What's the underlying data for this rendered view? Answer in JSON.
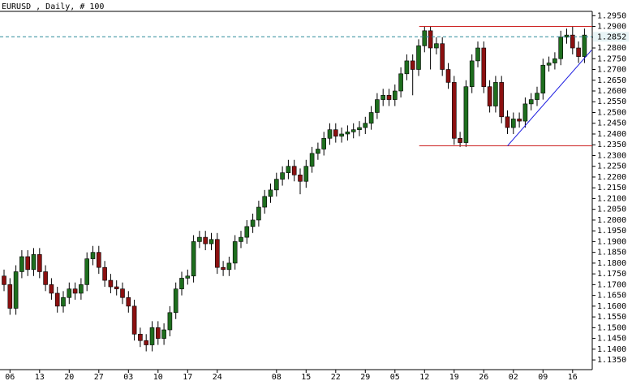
{
  "chart_data": {
    "type": "candlestick",
    "title": "EURUSD , Daily, # 100",
    "categories": [
      null,
      "06",
      null,
      null,
      null,
      null,
      "13",
      null,
      null,
      null,
      null,
      "20",
      null,
      null,
      null,
      null,
      "27",
      null,
      null,
      null,
      null,
      "03",
      null,
      null,
      null,
      null,
      "10",
      null,
      null,
      null,
      null,
      "17",
      null,
      null,
      null,
      null,
      "24",
      null,
      null,
      null,
      null,
      null,
      null,
      null,
      null,
      null,
      "08",
      null,
      null,
      null,
      null,
      "15",
      null,
      null,
      null,
      null,
      "22",
      null,
      null,
      null,
      null,
      "29",
      null,
      null,
      null,
      null,
      "05",
      null,
      null,
      null,
      null,
      "12",
      null,
      null,
      null,
      null,
      "19",
      null,
      null,
      null,
      null,
      "26",
      null,
      null,
      null,
      null,
      "02",
      null,
      null,
      null,
      null,
      "09",
      null,
      null,
      null,
      null,
      "16",
      null,
      null
    ],
    "open": [
      1.174,
      1.17,
      1.159,
      1.176,
      1.183,
      1.177,
      1.184,
      1.176,
      1.17,
      1.166,
      1.16,
      1.164,
      1.168,
      1.166,
      1.17,
      1.182,
      1.185,
      1.178,
      1.172,
      1.169,
      1.168,
      1.164,
      1.16,
      1.147,
      1.144,
      1.142,
      1.15,
      1.145,
      1.149,
      1.157,
      1.168,
      1.173,
      1.174,
      1.19,
      1.192,
      1.189,
      1.191,
      1.178,
      1.177,
      1.18,
      1.19,
      1.192,
      1.197,
      1.2,
      1.206,
      1.211,
      1.214,
      1.219,
      1.222,
      1.225,
      1.221,
      1.218,
      1.225,
      1.231,
      1.233,
      1.238,
      1.242,
      1.239,
      1.24,
      1.241,
      1.242,
      1.243,
      1.245,
      1.25,
      1.256,
      1.258,
      1.256,
      1.26,
      1.268,
      1.274,
      1.27,
      1.281,
      1.288,
      1.28,
      1.282,
      1.27,
      1.264,
      1.238,
      1.236,
      1.262,
      1.274,
      1.28,
      1.262,
      1.253,
      1.264,
      1.248,
      1.243,
      1.247,
      1.246,
      1.254,
      1.256,
      1.259,
      1.272,
      1.273,
      1.275,
      1.285,
      1.286,
      1.28,
      1.276
    ],
    "high": [
      1.177,
      1.173,
      1.179,
      1.186,
      1.186,
      1.187,
      1.187,
      1.179,
      1.173,
      1.169,
      1.167,
      1.171,
      1.171,
      1.173,
      1.185,
      1.188,
      1.188,
      1.181,
      1.175,
      1.172,
      1.171,
      1.167,
      1.163,
      1.15,
      1.147,
      1.153,
      1.153,
      1.152,
      1.16,
      1.171,
      1.176,
      1.177,
      1.193,
      1.195,
      1.195,
      1.194,
      1.194,
      1.181,
      1.183,
      1.193,
      1.195,
      1.2,
      1.203,
      1.209,
      1.214,
      1.217,
      1.222,
      1.225,
      1.228,
      1.228,
      1.224,
      1.228,
      1.234,
      1.236,
      1.241,
      1.245,
      1.245,
      1.243,
      1.244,
      1.245,
      1.246,
      1.248,
      1.253,
      1.259,
      1.261,
      1.261,
      1.263,
      1.271,
      1.277,
      1.277,
      1.284,
      1.29,
      1.29,
      1.285,
      1.285,
      1.273,
      1.267,
      1.241,
      1.265,
      1.277,
      1.283,
      1.283,
      1.265,
      1.267,
      1.267,
      1.251,
      1.25,
      1.25,
      1.257,
      1.259,
      1.262,
      1.275,
      1.276,
      1.278,
      1.288,
      1.289,
      1.29,
      1.283,
      1.289
    ],
    "low": [
      1.167,
      1.156,
      1.156,
      1.173,
      1.174,
      1.174,
      1.173,
      1.167,
      1.163,
      1.157,
      1.157,
      1.161,
      1.163,
      1.163,
      1.167,
      1.179,
      1.175,
      1.169,
      1.166,
      1.165,
      1.161,
      1.157,
      1.144,
      1.141,
      1.139,
      1.139,
      1.142,
      1.142,
      1.146,
      1.154,
      1.165,
      1.17,
      1.171,
      1.187,
      1.186,
      1.186,
      1.175,
      1.174,
      1.174,
      1.177,
      1.187,
      1.189,
      1.194,
      1.197,
      1.203,
      1.208,
      1.211,
      1.216,
      1.219,
      1.218,
      1.212,
      1.215,
      1.222,
      1.228,
      1.23,
      1.235,
      1.236,
      1.236,
      1.237,
      1.238,
      1.239,
      1.24,
      1.242,
      1.247,
      1.253,
      1.253,
      1.253,
      1.257,
      1.265,
      1.258,
      1.267,
      1.278,
      1.27,
      1.277,
      1.267,
      1.261,
      1.235,
      1.234,
      1.234,
      1.259,
      1.271,
      1.259,
      1.25,
      1.25,
      1.245,
      1.24,
      1.24,
      1.243,
      1.243,
      1.251,
      1.253,
      1.256,
      1.269,
      1.27,
      1.272,
      1.282,
      1.277,
      1.273,
      1.273
    ],
    "close": [
      1.17,
      1.159,
      1.176,
      1.183,
      1.177,
      1.184,
      1.176,
      1.17,
      1.166,
      1.16,
      1.164,
      1.168,
      1.166,
      1.17,
      1.182,
      1.185,
      1.178,
      1.172,
      1.169,
      1.168,
      1.164,
      1.16,
      1.147,
      1.144,
      1.142,
      1.15,
      1.145,
      1.149,
      1.157,
      1.168,
      1.173,
      1.174,
      1.19,
      1.192,
      1.189,
      1.191,
      1.178,
      1.177,
      1.18,
      1.19,
      1.192,
      1.197,
      1.2,
      1.206,
      1.211,
      1.214,
      1.219,
      1.222,
      1.225,
      1.221,
      1.218,
      1.225,
      1.231,
      1.233,
      1.238,
      1.242,
      1.239,
      1.24,
      1.241,
      1.242,
      1.243,
      1.245,
      1.25,
      1.256,
      1.258,
      1.256,
      1.26,
      1.268,
      1.274,
      1.27,
      1.281,
      1.288,
      1.28,
      1.282,
      1.27,
      1.264,
      1.238,
      1.236,
      1.262,
      1.274,
      1.28,
      1.262,
      1.253,
      1.264,
      1.248,
      1.243,
      1.247,
      1.246,
      1.254,
      1.256,
      1.259,
      1.272,
      1.273,
      1.275,
      1.285,
      1.286,
      1.28,
      1.276,
      1.286
    ],
    "up_color": "#1e6e1e",
    "down_color": "#8b1010",
    "ylim": [
      1.1305,
      1.297
    ],
    "yticks": [
      {
        "value": 1.135,
        "label": "1.1350"
      },
      {
        "value": 1.14,
        "label": "1.1400"
      },
      {
        "value": 1.145,
        "label": "1.1450"
      },
      {
        "value": 1.15,
        "label": "1.1500"
      },
      {
        "value": 1.155,
        "label": "1.1550"
      },
      {
        "value": 1.16,
        "label": "1.1600"
      },
      {
        "value": 1.165,
        "label": "1.1650"
      },
      {
        "value": 1.17,
        "label": "1.1700"
      },
      {
        "value": 1.175,
        "label": "1.1750"
      },
      {
        "value": 1.18,
        "label": "1.1800"
      },
      {
        "value": 1.185,
        "label": "1.1850"
      },
      {
        "value": 1.19,
        "label": "1.1900"
      },
      {
        "value": 1.195,
        "label": "1.1950"
      },
      {
        "value": 1.2,
        "label": "1.2000"
      },
      {
        "value": 1.205,
        "label": "1.2050"
      },
      {
        "value": 1.21,
        "label": "1.2100"
      },
      {
        "value": 1.215,
        "label": "1.2150"
      },
      {
        "value": 1.22,
        "label": "1.2200"
      },
      {
        "value": 1.225,
        "label": "1.2250"
      },
      {
        "value": 1.23,
        "label": "1.2300"
      },
      {
        "value": 1.235,
        "label": "1.2350"
      },
      {
        "value": 1.24,
        "label": "1.2400"
      },
      {
        "value": 1.245,
        "label": "1.2450"
      },
      {
        "value": 1.25,
        "label": "1.2500"
      },
      {
        "value": 1.255,
        "label": "1.2550"
      },
      {
        "value": 1.26,
        "label": "1.2600"
      },
      {
        "value": 1.265,
        "label": "1.2650"
      },
      {
        "value": 1.27,
        "label": "1.2700"
      },
      {
        "value": 1.275,
        "label": "1.2750"
      },
      {
        "value": 1.28,
        "label": "1.2800"
      },
      {
        "value": 1.285,
        "label": "1.2850"
      },
      {
        "value": 1.29,
        "label": "1.2900"
      },
      {
        "value": 1.295,
        "label": "1.2950"
      }
    ],
    "current_price": 1.2852,
    "current_color": "#2a8a9a",
    "hlines": [
      {
        "value": 1.29,
        "start": 70.1,
        "color": "#cc2020"
      },
      {
        "value": 1.2345,
        "start": 70.1,
        "color": "#cc2020"
      }
    ],
    "trendline": {
      "from": [
        85,
        1.2345
      ],
      "to": [
        99.2,
        1.279
      ],
      "color": "#1a1ae0"
    }
  }
}
